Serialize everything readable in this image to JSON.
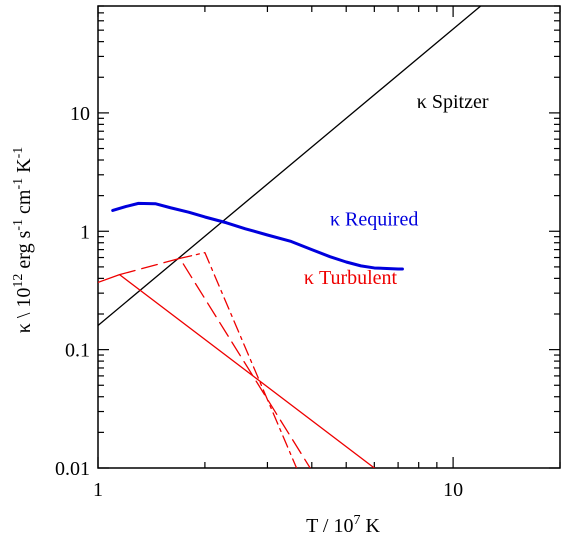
{
  "chart_data": {
    "type": "line",
    "title": "",
    "x_scale": "log",
    "y_scale": "log",
    "xlim": [
      1,
      20
    ],
    "ylim": [
      0.01,
      80
    ],
    "grid": false,
    "xlabel": {
      "main": "T / 10",
      "exp": "7",
      "tail": " K"
    },
    "ylabel": {
      "p1": "κ \\ 10",
      "e1": "12",
      "p2": " erg s",
      "e2": "-1",
      "p3": " cm",
      "e3": "-1",
      "p4": " K",
      "e4": "-1"
    },
    "x_ticks": [
      {
        "value": 1,
        "label": "1"
      },
      {
        "value": 10,
        "label": "10"
      }
    ],
    "y_ticks": [
      {
        "value": 0.01,
        "label": "0.01"
      },
      {
        "value": 0.1,
        "label": "0.1"
      },
      {
        "value": 1,
        "label": "1"
      },
      {
        "value": 10,
        "label": "10"
      }
    ],
    "series": [
      {
        "name": "κ Spitzer",
        "color": "#000000",
        "dash": "solid",
        "width": 1.3,
        "x": [
          1.0,
          20.0
        ],
        "y": [
          0.16,
          290
        ]
      },
      {
        "name": "κ Required",
        "color": "#0000dd",
        "dash": "solid",
        "width": 3,
        "x": [
          1.1,
          1.2,
          1.3,
          1.45,
          1.6,
          1.8,
          2.0,
          2.3,
          2.6,
          3.0,
          3.5,
          4.0,
          4.5,
          5.0,
          5.5,
          6.0,
          6.5,
          7.0,
          7.2
        ],
        "y": [
          1.5,
          1.62,
          1.72,
          1.71,
          1.58,
          1.45,
          1.32,
          1.18,
          1.05,
          0.93,
          0.82,
          0.7,
          0.61,
          0.55,
          0.51,
          0.49,
          0.485,
          0.48,
          0.48
        ]
      },
      {
        "name": "κ Turbulent",
        "color": "#ee0000",
        "dash": "solid",
        "width": 1.3,
        "x": [
          1.15,
          6.0
        ],
        "y": [
          0.43,
          0.01
        ]
      },
      {
        "name": "",
        "color": "#ee0000",
        "dash": "solid",
        "width": 1.3,
        "x": [
          1.0,
          1.15
        ],
        "y": [
          0.37,
          0.43
        ]
      },
      {
        "name": "",
        "color": "#ee0000",
        "dash": "long-dash",
        "width": 1.3,
        "x": [
          1.15,
          1.7,
          4.0
        ],
        "y": [
          0.43,
          0.59,
          0.0095
        ]
      },
      {
        "name": "",
        "color": "#ee0000",
        "dash": "dash-dot",
        "width": 1.3,
        "x": [
          1.7,
          2.0,
          3.65
        ],
        "y": [
          0.59,
          0.66,
          0.0095
        ]
      }
    ],
    "annotations": [
      {
        "text": "κ Spitzer",
        "color": "#000000",
        "x": 7.9,
        "y": 11
      },
      {
        "text": "κ Required",
        "color": "#0000dd",
        "x": 4.5,
        "y": 1.12
      },
      {
        "text": "κ Turbulent",
        "color": "#ee0000",
        "x": 3.8,
        "y": 0.36
      }
    ]
  }
}
